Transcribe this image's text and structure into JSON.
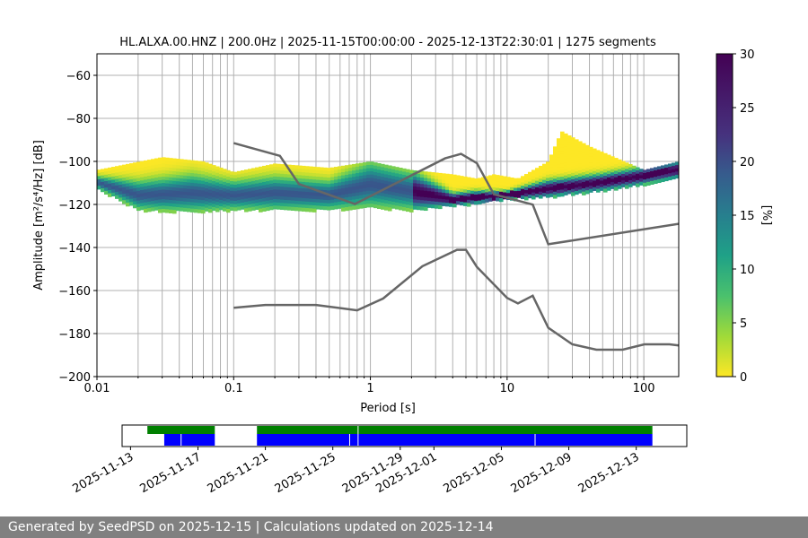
{
  "chart_data": [
    {
      "type": "heatmap",
      "title": "HL.ALXA.00.HNZ | 200.0Hz | 2025-11-15T00:00:00 - 2025-12-13T22:30:01 | 1275 segments",
      "xlabel": "Period [s]",
      "ylabel": "Amplitude [m²/s⁴/Hz] [dB]",
      "xscale": "log",
      "xlim": [
        0.01,
        180
      ],
      "ylim": [
        -200,
        -50
      ],
      "xticks": [
        0.01,
        0.1,
        1,
        10,
        100
      ],
      "xtick_labels": [
        "0.01",
        "0.1",
        "1",
        "10",
        "100"
      ],
      "yticks": [
        -200,
        -180,
        -160,
        -140,
        -120,
        -100,
        -80,
        -60
      ],
      "ytick_labels": [
        "−200",
        "−180",
        "−160",
        "−140",
        "−120",
        "−100",
        "−80",
        "−60"
      ],
      "grid": true,
      "colorbar": {
        "label": "[%]",
        "range": [
          0,
          30
        ],
        "ticks": [
          0,
          5,
          10,
          15,
          20,
          25,
          30
        ],
        "tick_labels": [
          "0",
          "5",
          "10",
          "15",
          "20",
          "25",
          "30"
        ],
        "colormap": "viridis_r"
      },
      "psd_mode": {
        "x": [
          0.01,
          0.02,
          0.05,
          0.1,
          0.2,
          0.5,
          1,
          2,
          4,
          6,
          10,
          20,
          50,
          100,
          180
        ],
        "y": [
          -109,
          -115,
          -114,
          -115,
          -114,
          -115,
          -110,
          -113,
          -117,
          -116,
          -115,
          -112,
          -109,
          -106,
          -103
        ]
      },
      "psd_upper": {
        "x": [
          0.01,
          0.03,
          0.06,
          0.1,
          0.2,
          0.5,
          1,
          2,
          4,
          6,
          8,
          12,
          20,
          25,
          40,
          100,
          180
        ],
        "y": [
          -104,
          -98,
          -100,
          -105,
          -101,
          -103,
          -100,
          -104,
          -106,
          -108,
          -106,
          -108,
          -100,
          -86,
          -93,
          -104,
          -100
        ]
      },
      "psd_lower": {
        "x": [
          0.01,
          0.02,
          0.05,
          0.1,
          0.2,
          0.5,
          1,
          2,
          4,
          6,
          10,
          20,
          50,
          100,
          180
        ],
        "y": [
          -112,
          -122,
          -123,
          -122,
          -122,
          -122,
          -121,
          -122,
          -120,
          -119,
          -117,
          -116,
          -113,
          -110,
          -107
        ]
      },
      "series": [
        {
          "name": "",
          "x": [
            0.1,
            0.218,
            0.3,
            0.77,
            3.52,
            4.6,
            6.0,
            8.0,
            15.4,
            20,
            180
          ],
          "y": [
            -91.5,
            -97.4,
            -110.5,
            -119.8,
            -98.6,
            -96.5,
            -100.8,
            -115.3,
            -120.1,
            -138.5,
            -129
          ]
        },
        {
          "name": "",
          "x": [
            0.1,
            0.17,
            0.4,
            0.8,
            1.24,
            2.4,
            4.3,
            5.0,
            6.0,
            10,
            12,
            15.4,
            20,
            30,
            45,
            70,
            101,
            154,
            180
          ],
          "y": [
            -168,
            -166.7,
            -166.7,
            -169.2,
            -163.7,
            -148.7,
            -141.1,
            -141.1,
            -149,
            -163.4,
            -166,
            -162.4,
            -177.3,
            -185,
            -187.5,
            -187.5,
            -185,
            -185,
            -185.5
          ]
        }
      ]
    },
    {
      "type": "bar",
      "xaxis": "date",
      "xlim": [
        "2025-11-12T12:00",
        "2025-12-16T00:00"
      ],
      "xticks": [
        "2025-11-13",
        "2025-11-17",
        "2025-11-21",
        "2025-11-25",
        "2025-11-29",
        "2025-12-01",
        "2025-12-05",
        "2025-12-09",
        "2025-12-13"
      ],
      "tick_labels": [
        "2025-11-13",
        "2025-11-17",
        "2025-11-21",
        "2025-11-25",
        "2025-11-29",
        "2025-12-01",
        "2025-12-05",
        "2025-12-09",
        "2025-12-13"
      ],
      "series": [
        {
          "name": "",
          "color": "#008000",
          "intervals": [
            [
              "2025-11-14T00:00",
              "2025-11-18T00:00"
            ],
            [
              "2025-11-20T12:00",
              "2025-12-13T23:00"
            ]
          ]
        },
        {
          "name": "",
          "color": "#0000ff",
          "intervals": [
            [
              "2025-11-15T00:00",
              "2025-11-18T00:00"
            ],
            [
              "2025-11-20T12:00",
              "2025-12-13T23:00"
            ]
          ],
          "gap_marks": [
            "2025-11-16T00:00",
            "2025-11-26T00:00",
            "2025-12-07T00:00"
          ]
        }
      ],
      "green_marks": [
        "2025-11-26T12:00"
      ]
    }
  ],
  "footer": "Generated by SeedPSD on 2025-12-15 | Calculations updated on 2025-12-14"
}
